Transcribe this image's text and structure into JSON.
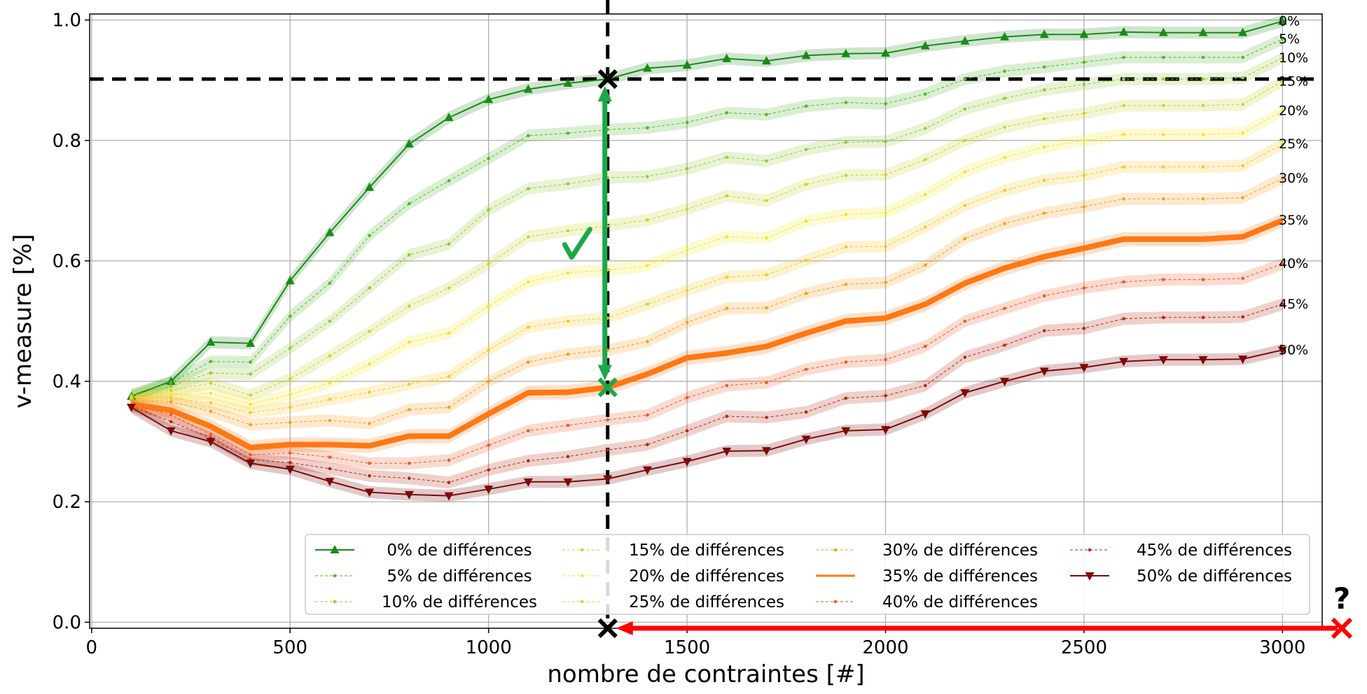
{
  "chart_data": {
    "type": "line",
    "xlabel": "nombre de contraintes [#]",
    "ylabel": "v-measure [%]",
    "xlim": [
      -5,
      3100
    ],
    "ylim": [
      -0.01,
      1.01
    ],
    "x_ticks": [
      0,
      500,
      1000,
      1500,
      2000,
      2500,
      3000
    ],
    "x_tick_labels": [
      "0",
      "500",
      "1000",
      "1500",
      "2000",
      "2500",
      "3000"
    ],
    "y_ticks": [
      0.0,
      0.2,
      0.4,
      0.6,
      0.8,
      1.0
    ],
    "y_tick_labels": [
      "0.0",
      "0.2",
      "0.4",
      "0.6",
      "0.8",
      "1.0"
    ],
    "grid": true,
    "legend_position": "lower-right",
    "legend_columns": 4,
    "x": [
      100,
      200,
      300,
      400,
      500,
      600,
      700,
      800,
      900,
      1000,
      1100,
      1200,
      1300,
      1400,
      1500,
      1600,
      1700,
      1800,
      1900,
      2000,
      2100,
      2200,
      2300,
      2400,
      2500,
      2600,
      2700,
      2800,
      2900,
      3000
    ],
    "series": [
      {
        "name": "0% de différences",
        "end_label": "0%",
        "color": "#1a8a1a",
        "marker": "triangle-up",
        "style": "solid",
        "width": 2,
        "values": [
          0.375,
          0.4,
          0.465,
          0.463,
          0.567,
          0.647,
          0.722,
          0.794,
          0.838,
          0.868,
          0.885,
          0.895,
          0.902,
          0.92,
          0.925,
          0.936,
          0.932,
          0.941,
          0.944,
          0.945,
          0.957,
          0.965,
          0.972,
          0.976,
          0.976,
          0.98,
          0.979,
          0.979,
          0.979,
          0.998
        ]
      },
      {
        "name": "5% de différences",
        "end_label": "5%",
        "color": "#55b432",
        "marker": "dot",
        "style": "dashed",
        "width": 1,
        "values": [
          0.378,
          0.398,
          0.433,
          0.432,
          0.508,
          0.563,
          0.642,
          0.695,
          0.733,
          0.77,
          0.808,
          0.812,
          0.818,
          0.821,
          0.83,
          0.846,
          0.843,
          0.857,
          0.863,
          0.861,
          0.877,
          0.902,
          0.915,
          0.922,
          0.93,
          0.938,
          0.938,
          0.938,
          0.938,
          0.968
        ]
      },
      {
        "name": "10% de différences",
        "end_label": "10%",
        "color": "#96c83c",
        "marker": "dot",
        "style": "dashed",
        "width": 1,
        "values": [
          0.376,
          0.392,
          0.414,
          0.412,
          0.455,
          0.5,
          0.555,
          0.61,
          0.628,
          0.685,
          0.72,
          0.728,
          0.738,
          0.74,
          0.753,
          0.772,
          0.766,
          0.785,
          0.797,
          0.798,
          0.82,
          0.852,
          0.87,
          0.884,
          0.893,
          0.902,
          0.902,
          0.902,
          0.904,
          0.937
        ]
      },
      {
        "name": "15% de différences",
        "end_label": "15%",
        "color": "#cad232",
        "marker": "dot",
        "style": "dashed",
        "width": 1,
        "values": [
          0.374,
          0.385,
          0.397,
          0.377,
          0.404,
          0.442,
          0.483,
          0.525,
          0.555,
          0.595,
          0.64,
          0.65,
          0.658,
          0.668,
          0.686,
          0.708,
          0.7,
          0.727,
          0.742,
          0.743,
          0.768,
          0.8,
          0.822,
          0.836,
          0.845,
          0.858,
          0.858,
          0.858,
          0.86,
          0.898
        ]
      },
      {
        "name": "20% de différences",
        "end_label": "20%",
        "color": "#f0e632",
        "marker": "dot",
        "style": "dashed",
        "width": 1,
        "values": [
          0.372,
          0.378,
          0.38,
          0.362,
          0.378,
          0.397,
          0.429,
          0.465,
          0.48,
          0.525,
          0.565,
          0.58,
          0.585,
          0.592,
          0.618,
          0.64,
          0.638,
          0.666,
          0.677,
          0.68,
          0.71,
          0.748,
          0.772,
          0.789,
          0.8,
          0.81,
          0.81,
          0.81,
          0.812,
          0.849
        ]
      },
      {
        "name": "25% de différences",
        "end_label": "25%",
        "color": "#f5c828",
        "marker": "dot",
        "style": "dashed",
        "width": 1,
        "values": [
          0.37,
          0.372,
          0.364,
          0.348,
          0.357,
          0.37,
          0.382,
          0.395,
          0.408,
          0.452,
          0.49,
          0.5,
          0.505,
          0.528,
          0.551,
          0.573,
          0.577,
          0.601,
          0.623,
          0.624,
          0.656,
          0.692,
          0.717,
          0.734,
          0.742,
          0.756,
          0.756,
          0.756,
          0.758,
          0.794
        ]
      },
      {
        "name": "30% de différences",
        "end_label": "30%",
        "color": "#f5a01e",
        "marker": "dot",
        "style": "dashed",
        "width": 1,
        "values": [
          0.368,
          0.366,
          0.35,
          0.328,
          0.332,
          0.335,
          0.33,
          0.353,
          0.357,
          0.4,
          0.432,
          0.445,
          0.452,
          0.466,
          0.498,
          0.521,
          0.522,
          0.546,
          0.561,
          0.564,
          0.593,
          0.637,
          0.662,
          0.679,
          0.69,
          0.703,
          0.703,
          0.703,
          0.705,
          0.737
        ]
      },
      {
        "name": "35% de différences",
        "end_label": "35%",
        "color": "#ff7814",
        "marker": "none",
        "style": "solid",
        "width": 8,
        "values": [
          0.362,
          0.352,
          0.325,
          0.29,
          0.295,
          0.295,
          0.293,
          0.309,
          0.309,
          0.346,
          0.381,
          0.382,
          0.39,
          0.412,
          0.439,
          0.447,
          0.458,
          0.48,
          0.5,
          0.505,
          0.528,
          0.563,
          0.588,
          0.607,
          0.621,
          0.636,
          0.636,
          0.636,
          0.64,
          0.667
        ]
      },
      {
        "name": "40% de différences",
        "end_label": "40%",
        "color": "#eb5a28",
        "marker": "dot",
        "style": "dashed",
        "width": 1,
        "values": [
          0.361,
          0.345,
          0.312,
          0.278,
          0.281,
          0.274,
          0.264,
          0.264,
          0.269,
          0.294,
          0.318,
          0.327,
          0.336,
          0.344,
          0.373,
          0.393,
          0.398,
          0.42,
          0.432,
          0.436,
          0.458,
          0.5,
          0.521,
          0.542,
          0.555,
          0.565,
          0.569,
          0.569,
          0.571,
          0.595
        ]
      },
      {
        "name": "45% de différences",
        "end_label": "45%",
        "color": "#b42814",
        "marker": "dot",
        "style": "dashed",
        "width": 1,
        "values": [
          0.359,
          0.333,
          0.306,
          0.27,
          0.265,
          0.255,
          0.243,
          0.239,
          0.232,
          0.253,
          0.268,
          0.275,
          0.286,
          0.295,
          0.318,
          0.342,
          0.34,
          0.349,
          0.372,
          0.376,
          0.393,
          0.44,
          0.46,
          0.484,
          0.488,
          0.504,
          0.506,
          0.506,
          0.507,
          0.528
        ]
      },
      {
        "name": "50% de différences",
        "end_label": "50%",
        "color": "#7d0a0a",
        "marker": "triangle-down",
        "style": "solid",
        "width": 2,
        "values": [
          0.357,
          0.318,
          0.3,
          0.264,
          0.254,
          0.234,
          0.216,
          0.212,
          0.21,
          0.221,
          0.233,
          0.233,
          0.238,
          0.253,
          0.267,
          0.284,
          0.285,
          0.304,
          0.318,
          0.32,
          0.346,
          0.381,
          0.4,
          0.417,
          0.423,
          0.433,
          0.436,
          0.436,
          0.437,
          0.452
        ]
      }
    ],
    "reference_lines": {
      "horizontal_y": 0.902,
      "vertical_x": 1300,
      "color": "#000000",
      "style": "dashed"
    },
    "annotations": {
      "upper_cross": {
        "x": 1300,
        "y": 0.902,
        "color": "#000000"
      },
      "lower_cross": {
        "x": 1300,
        "y": 0.39,
        "color": "#1aa84a"
      },
      "axis_cross": {
        "x": 1300,
        "y": -0.01,
        "color": "#000000"
      },
      "double_arrow": {
        "x": 1300,
        "from_y": 0.39,
        "to_y": 0.902,
        "color": "#1aa84a"
      },
      "check_mark": {
        "x": 1220,
        "y": 0.62,
        "color": "#1aa84a"
      },
      "red_arrow": {
        "from_x": 3180,
        "to_x": 1300,
        "y": -0.01,
        "color": "#ff0000"
      },
      "question_mark": "?",
      "question_color": "#ff0000"
    }
  }
}
